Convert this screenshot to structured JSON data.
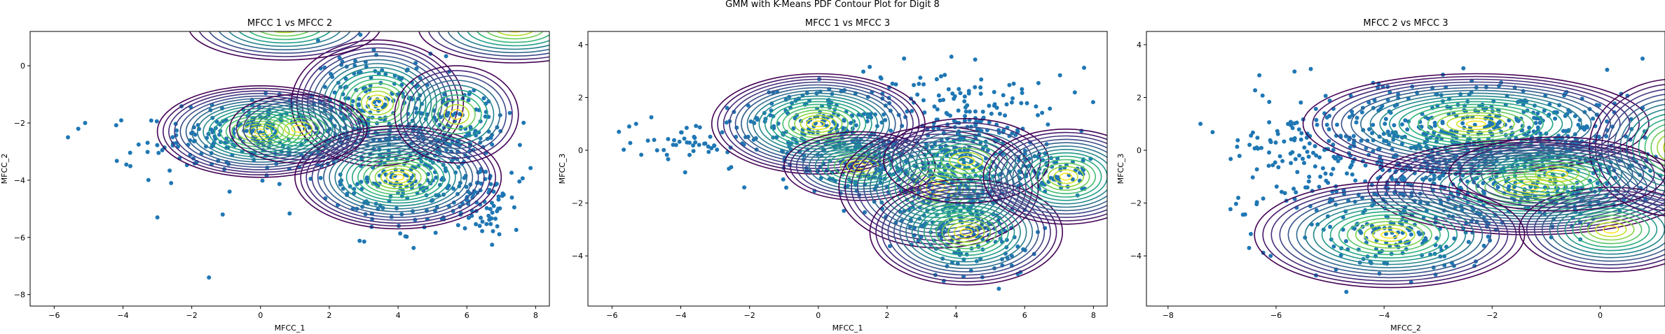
{
  "figure_title": "GMM with K-Means PDF Contour Plot for Digit 8",
  "chart_data": [
    {
      "type": "scatter",
      "title": "MFCC 1 vs MFCC 2",
      "xlabel": "MFCC_1",
      "ylabel": "MFCC_2",
      "xlim": [
        -6.7,
        8.4
      ],
      "ylim": [
        -8.4,
        1.2
      ],
      "xticks": [
        -6,
        -4,
        -2,
        0,
        2,
        4,
        6,
        8
      ],
      "yticks": [
        -8,
        -6,
        -4,
        -2,
        0
      ],
      "point_color": "#1f77b4",
      "point_clusters": [
        {
          "center": [
            0.0,
            -2.3
          ],
          "std": [
            1.2,
            0.6
          ],
          "count": 180
        },
        {
          "center": [
            3.4,
            -1.3
          ],
          "std": [
            0.9,
            0.8
          ],
          "count": 160
        },
        {
          "center": [
            4.3,
            -3.9
          ],
          "std": [
            1.2,
            1.0
          ],
          "count": 220
        },
        {
          "center": [
            5.8,
            -1.9
          ],
          "std": [
            0.7,
            0.8
          ],
          "count": 90
        },
        {
          "center": [
            6.5,
            -4.8
          ],
          "std": [
            0.5,
            0.7
          ],
          "count": 70
        },
        {
          "center": [
            -2.3,
            -3.0
          ],
          "std": [
            1.0,
            0.5
          ],
          "count": 40
        }
      ],
      "outliers": [
        [
          -5.6,
          -2.5
        ],
        [
          -5.3,
          -2.2
        ],
        [
          -5.1,
          -2.0
        ],
        [
          -3.0,
          -5.3
        ],
        [
          -1.5,
          -7.4
        ],
        [
          -1.1,
          -5.2
        ],
        [
          -2.6,
          -4.1
        ],
        [
          -0.9,
          -4.4
        ]
      ],
      "components": [
        {
          "center": [
            0.0,
            -2.3
          ],
          "rx": 3.0,
          "ry": 1.6,
          "rings": 18
        },
        {
          "center": [
            3.4,
            -1.3
          ],
          "rx": 2.5,
          "ry": 2.2,
          "rings": 16
        },
        {
          "center": [
            4.0,
            -3.9
          ],
          "rx": 3.0,
          "ry": 1.8,
          "rings": 18
        },
        {
          "center": [
            5.7,
            -1.7
          ],
          "rx": 1.8,
          "ry": 1.7,
          "rings": 10
        },
        {
          "center": [
            1.1,
            -2.2
          ],
          "rx": 2.0,
          "ry": 1.2,
          "rings": 10
        },
        {
          "center": [
            0.7,
            1.4
          ],
          "rx": 2.8,
          "ry": 1.2,
          "rings": 10
        },
        {
          "center": [
            7.4,
            1.3
          ],
          "rx": 2.8,
          "ry": 1.2,
          "rings": 10
        }
      ]
    },
    {
      "type": "scatter",
      "title": "MFCC 1 vs MFCC 3",
      "xlabel": "MFCC_1",
      "ylabel": "MFCC_3",
      "xlim": [
        -6.7,
        8.4
      ],
      "ylim": [
        -5.9,
        4.5
      ],
      "xticks": [
        -6,
        -4,
        -2,
        0,
        2,
        4,
        6,
        8
      ],
      "yticks": [
        -4,
        -2,
        0,
        2,
        4
      ],
      "point_color": "#1f77b4",
      "point_clusters": [
        {
          "center": [
            0.0,
            1.0
          ],
          "std": [
            1.2,
            0.8
          ],
          "count": 200
        },
        {
          "center": [
            1.2,
            -0.6
          ],
          "std": [
            1.0,
            0.6
          ],
          "count": 120
        },
        {
          "center": [
            3.5,
            -1.4
          ],
          "std": [
            0.9,
            0.9
          ],
          "count": 160
        },
        {
          "center": [
            4.2,
            0.8
          ],
          "std": [
            1.3,
            1.1
          ],
          "count": 220
        },
        {
          "center": [
            4.3,
            -3.1
          ],
          "std": [
            0.9,
            0.8
          ],
          "count": 140
        },
        {
          "center": [
            6.8,
            -0.9
          ],
          "std": [
            0.6,
            0.5
          ],
          "count": 70
        },
        {
          "center": [
            -3.5,
            0.3
          ],
          "std": [
            1.0,
            0.35
          ],
          "count": 45
        }
      ],
      "outliers": [
        [
          -5.8,
          0.7
        ],
        [
          -5.5,
          0.9
        ],
        [
          -5.3,
          1.0
        ],
        [
          -2.6,
          -0.7
        ]
      ],
      "components": [
        {
          "center": [
            0.0,
            1.0
          ],
          "rx": 3.1,
          "ry": 1.9,
          "rings": 18
        },
        {
          "center": [
            1.2,
            -0.6
          ],
          "rx": 2.2,
          "ry": 1.3,
          "rings": 12
        },
        {
          "center": [
            3.5,
            -1.4
          ],
          "rx": 2.9,
          "ry": 2.3,
          "rings": 16
        },
        {
          "center": [
            4.3,
            -3.1
          ],
          "rx": 2.8,
          "ry": 2.0,
          "rings": 16
        },
        {
          "center": [
            4.3,
            -0.4
          ],
          "rx": 2.4,
          "ry": 1.6,
          "rings": 10
        },
        {
          "center": [
            7.2,
            -1.0
          ],
          "rx": 2.4,
          "ry": 1.8,
          "rings": 14
        }
      ]
    },
    {
      "type": "scatter",
      "title": "MFCC 2 vs MFCC 3",
      "xlabel": "MFCC_2",
      "ylabel": "MFCC_3",
      "xlim": [
        -8.4,
        1.2
      ],
      "ylim": [
        -5.9,
        4.5
      ],
      "xticks": [
        -8,
        -6,
        -4,
        -2,
        0
      ],
      "yticks": [
        -4,
        -2,
        0,
        2,
        4
      ],
      "point_color": "#1f77b4",
      "point_clusters": [
        {
          "center": [
            -2.3,
            1.0
          ],
          "std": [
            1.3,
            0.8
          ],
          "count": 240
        },
        {
          "center": [
            -1.3,
            -1.4
          ],
          "std": [
            1.0,
            0.9
          ],
          "count": 170
        },
        {
          "center": [
            -3.9,
            -3.2
          ],
          "std": [
            0.9,
            0.8
          ],
          "count": 140
        },
        {
          "center": [
            -3.8,
            -0.5
          ],
          "std": [
            1.2,
            1.1
          ],
          "count": 260
        },
        {
          "center": [
            -0.6,
            0.2
          ],
          "std": [
            1.0,
            1.0
          ],
          "count": 150
        },
        {
          "center": [
            -5.8,
            0.0
          ],
          "std": [
            0.6,
            1.2
          ],
          "count": 80
        }
      ],
      "outliers": [
        [
          -7.4,
          1.0
        ],
        [
          -6.7,
          -1.8
        ],
        [
          -6.5,
          -3.7
        ],
        [
          -6.1,
          -4.0
        ],
        [
          -3.5,
          -5.0
        ],
        [
          -0.2,
          -2.0
        ]
      ],
      "components": [
        {
          "center": [
            -2.3,
            1.0
          ],
          "rx": 3.2,
          "ry": 1.9,
          "rings": 18
        },
        {
          "center": [
            -1.3,
            -1.4
          ],
          "rx": 3.0,
          "ry": 1.8,
          "rings": 18
        },
        {
          "center": [
            -3.9,
            -3.2
          ],
          "rx": 2.5,
          "ry": 2.0,
          "rings": 16
        },
        {
          "center": [
            0.2,
            -3.0
          ],
          "rx": 1.7,
          "ry": 1.6,
          "rings": 12
        },
        {
          "center": [
            1.4,
            0.1
          ],
          "rx": 1.6,
          "ry": 2.6,
          "rings": 14
        },
        {
          "center": [
            -0.8,
            -0.9
          ],
          "rx": 2.0,
          "ry": 1.4,
          "rings": 10
        }
      ]
    }
  ]
}
